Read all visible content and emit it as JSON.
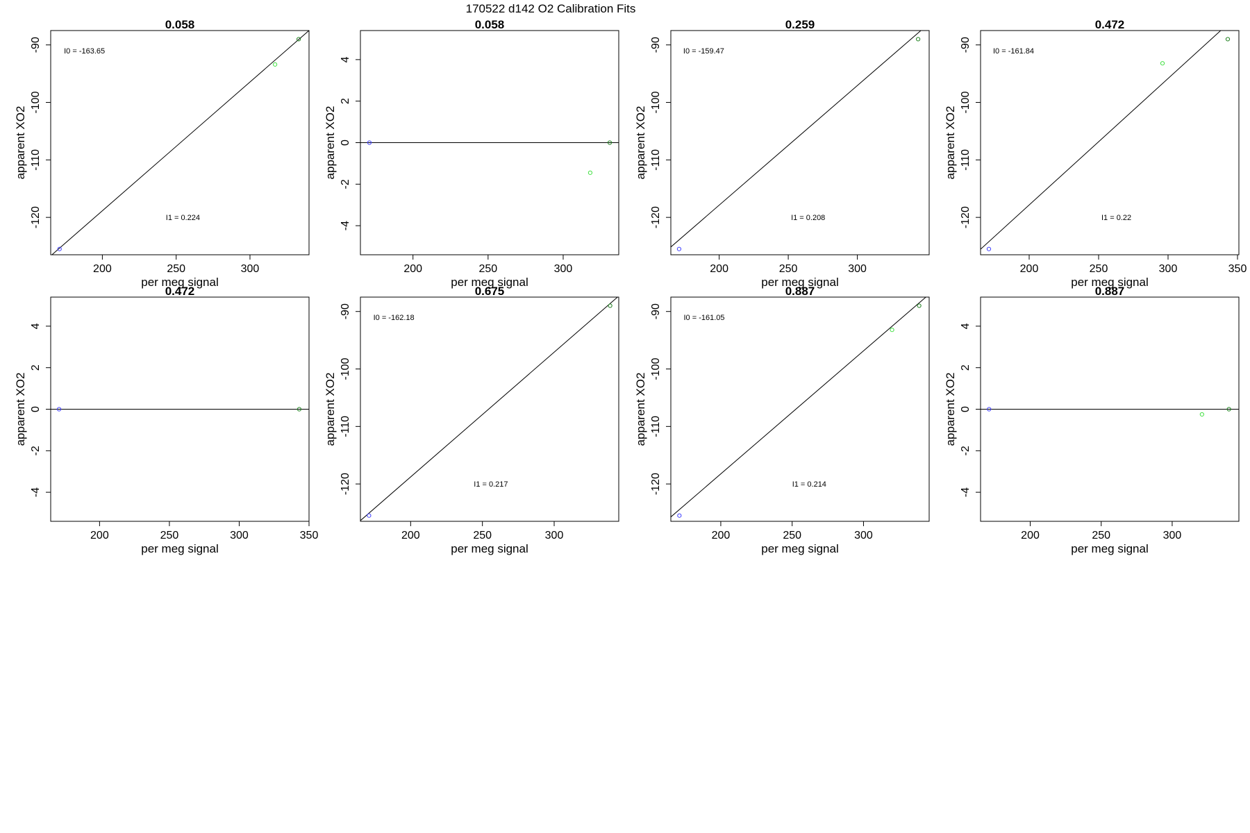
{
  "suptitle": "170522   d142   O2 Calibration Fits",
  "chart_data": [
    {
      "type": "scatter",
      "title": "0.058",
      "xlabel": "per meg signal",
      "ylabel": "apparent XO2",
      "xlim": [
        165,
        340
      ],
      "ylim": [
        -126.5,
        -87.5
      ],
      "xticks": [
        200,
        250,
        300
      ],
      "yticks": [
        -120,
        -110,
        -100,
        -90
      ],
      "points": [
        {
          "x": 171,
          "y": -125.5,
          "color": "#4040ff"
        },
        {
          "x": 317,
          "y": -93.4,
          "color": "#40e040"
        },
        {
          "x": 333,
          "y": -89.0,
          "color": "#208020"
        }
      ],
      "fit_line": {
        "slope": 0.224,
        "intercept": -163.65
      },
      "annotations": [
        {
          "label": "I0 =  -163.65",
          "x": 174,
          "y": -91.0
        },
        {
          "label": "I1 =  0.224",
          "x": 243,
          "y": -120.0
        }
      ]
    },
    {
      "type": "scatter",
      "title": "0.058",
      "xlabel": "per meg signal",
      "ylabel": "apparent XO2",
      "xlim": [
        165,
        337
      ],
      "ylim": [
        -5.4,
        5.4
      ],
      "xticks": [
        200,
        250,
        300
      ],
      "yticks": [
        -4,
        -2,
        0,
        2,
        4
      ],
      "points": [
        {
          "x": 171,
          "y": 0,
          "color": "#4040ff"
        },
        {
          "x": 318,
          "y": -1.45,
          "color": "#40e040"
        },
        {
          "x": 331,
          "y": 0,
          "color": "#208020"
        }
      ],
      "fit_line": {
        "slope": 0,
        "intercept": 0
      },
      "annotations": []
    },
    {
      "type": "scatter",
      "title": "0.259",
      "xlabel": "per meg signal",
      "ylabel": "apparent XO2",
      "xlim": [
        165,
        352
      ],
      "ylim": [
        -126.5,
        -87.5
      ],
      "xticks": [
        200,
        250,
        300
      ],
      "yticks": [
        -120,
        -110,
        -100,
        -90
      ],
      "points": [
        {
          "x": 171,
          "y": -125.5,
          "color": "#4040ff"
        },
        {
          "x": 344,
          "y": -89.0,
          "color": "#208020"
        }
      ],
      "fit_line": {
        "slope": 0.208,
        "intercept": -159.47
      },
      "annotations": [
        {
          "label": "I0 =  -159.47",
          "x": 174,
          "y": -91.0
        },
        {
          "label": "I1 =  0.208",
          "x": 252,
          "y": -120.0
        }
      ]
    },
    {
      "type": "scatter",
      "title": "0.472",
      "xlabel": "per meg signal",
      "ylabel": "apparent XO2",
      "xlim": [
        165,
        351
      ],
      "ylim": [
        -126.5,
        -87.5
      ],
      "xticks": [
        200,
        250,
        300,
        350
      ],
      "yticks": [
        -120,
        -110,
        -100,
        -90
      ],
      "points": [
        {
          "x": 171,
          "y": -125.5,
          "color": "#4040ff"
        },
        {
          "x": 296,
          "y": -93.2,
          "color": "#40e040"
        },
        {
          "x": 343,
          "y": -89.0,
          "color": "#208020"
        }
      ],
      "fit_line": {
        "slope": 0.22,
        "intercept": -161.84
      },
      "annotations": [
        {
          "label": "I0 =  -161.84",
          "x": 174,
          "y": -91.0
        },
        {
          "label": "I1 =  0.22",
          "x": 252,
          "y": -120.0
        }
      ]
    },
    {
      "type": "scatter",
      "title": "0.472",
      "xlabel": "per meg signal",
      "ylabel": "apparent XO2",
      "xlim": [
        165,
        350
      ],
      "ylim": [
        -5.4,
        5.4
      ],
      "xticks": [
        200,
        250,
        300,
        350
      ],
      "yticks": [
        -4,
        -2,
        0,
        2,
        4
      ],
      "points": [
        {
          "x": 171,
          "y": 0,
          "color": "#4040ff"
        },
        {
          "x": 343,
          "y": 0,
          "color": "#208020"
        }
      ],
      "fit_line": {
        "slope": 0,
        "intercept": 0
      },
      "annotations": []
    },
    {
      "type": "scatter",
      "title": "0.675",
      "xlabel": "per meg signal",
      "ylabel": "apparent XO2",
      "xlim": [
        165,
        345
      ],
      "ylim": [
        -126.5,
        -87.5
      ],
      "xticks": [
        200,
        250,
        300
      ],
      "yticks": [
        -120,
        -110,
        -100,
        -90
      ],
      "points": [
        {
          "x": 171,
          "y": -125.5,
          "color": "#4040ff"
        },
        {
          "x": 339,
          "y": -89.0,
          "color": "#208020"
        }
      ],
      "fit_line": {
        "slope": 0.217,
        "intercept": -162.18
      },
      "annotations": [
        {
          "label": "I0 =  -162.18",
          "x": 174,
          "y": -91.0
        },
        {
          "label": "I1 =  0.217",
          "x": 244,
          "y": -120.0
        }
      ]
    },
    {
      "type": "scatter",
      "title": "0.887",
      "xlabel": "per meg signal",
      "ylabel": "apparent XO2",
      "xlim": [
        165,
        346
      ],
      "ylim": [
        -126.5,
        -87.5
      ],
      "xticks": [
        200,
        250,
        300
      ],
      "yticks": [
        -120,
        -110,
        -100,
        -90
      ],
      "points": [
        {
          "x": 171,
          "y": -125.5,
          "color": "#4040ff"
        },
        {
          "x": 320,
          "y": -93.2,
          "color": "#40e040"
        },
        {
          "x": 339,
          "y": -89.0,
          "color": "#208020"
        }
      ],
      "fit_line": {
        "slope": 0.214,
        "intercept": -161.05
      },
      "annotations": [
        {
          "label": "I0 =  -161.05",
          "x": 174,
          "y": -91.0
        },
        {
          "label": "I1 =  0.214",
          "x": 250,
          "y": -120.0
        }
      ]
    },
    {
      "type": "scatter",
      "title": "0.887",
      "xlabel": "per meg signal",
      "ylabel": "apparent XO2",
      "xlim": [
        165,
        347
      ],
      "ylim": [
        -5.4,
        5.4
      ],
      "xticks": [
        200,
        250,
        300
      ],
      "yticks": [
        -4,
        -2,
        0,
        2,
        4
      ],
      "points": [
        {
          "x": 171,
          "y": 0,
          "color": "#4040ff"
        },
        {
          "x": 321,
          "y": -0.25,
          "color": "#40e040"
        },
        {
          "x": 340,
          "y": 0,
          "color": "#208020"
        }
      ],
      "fit_line": {
        "slope": 0,
        "intercept": 0
      },
      "annotations": []
    }
  ]
}
